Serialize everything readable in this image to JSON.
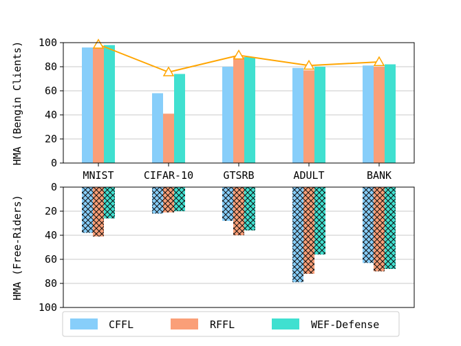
{
  "chart_data": [
    {
      "type": "bar",
      "panel": "top",
      "categories": [
        "MNIST",
        "CIFAR-10",
        "GTSRB",
        "ADULT",
        "BANK"
      ],
      "ylabel": "HMA (Bengin Clients)",
      "ylim": [
        0,
        100
      ],
      "yticks": [
        0,
        20,
        40,
        60,
        80,
        100
      ],
      "grid": true,
      "series": [
        {
          "name": "CFFL",
          "values": [
            96,
            58,
            80,
            79,
            81
          ],
          "color": "#87cefa"
        },
        {
          "name": "RFFL",
          "values": [
            96,
            41,
            88,
            77,
            80
          ],
          "color": "#fa9f78"
        },
        {
          "name": "WEF-Defense",
          "values": [
            98,
            74,
            88,
            80,
            82
          ],
          "color": "#40e0d0"
        }
      ],
      "line": {
        "values": [
          98.5,
          75.5,
          89.5,
          81,
          84
        ],
        "color": "#ffa500",
        "marker": "triangle"
      }
    },
    {
      "type": "bar",
      "panel": "bottom",
      "categories": [
        "MNIST",
        "CIFAR-10",
        "GTSRB",
        "ADULT",
        "BANK"
      ],
      "ylabel": "HMA (Free-Riders)",
      "ylim": [
        0,
        100
      ],
      "yticks": [
        0,
        20,
        40,
        60,
        80,
        100
      ],
      "inverted": true,
      "hatch": "cross",
      "grid": true,
      "series": [
        {
          "name": "CFFL",
          "values": [
            38,
            22,
            28,
            79,
            63
          ]
        },
        {
          "name": "RFFL",
          "values": [
            41,
            21,
            40,
            72,
            70
          ]
        },
        {
          "name": "WEF-Defense",
          "values": [
            26,
            20,
            36,
            56,
            68
          ]
        }
      ]
    }
  ],
  "legend": {
    "position": "bottom",
    "items": [
      {
        "label": "CFFL",
        "color": "#87cefa"
      },
      {
        "label": "RFFL",
        "color": "#fa9f78"
      },
      {
        "label": "WEF-Defense",
        "color": "#40e0d0"
      }
    ]
  }
}
